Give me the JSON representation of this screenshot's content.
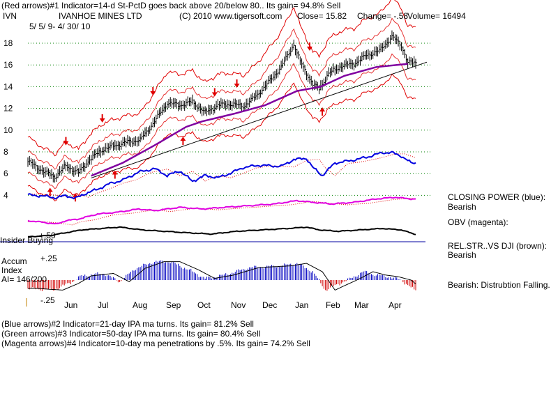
{
  "header": {
    "line1": "(Red arrows)#1 Indicator=14-d St-PctD goes back above 20/below 80.. Its gain= 94.8% Sell",
    "ticker": "IVN",
    "company": "IVANHOE MINES LTD",
    "copyright": "(C) 2010 www.tigersoft.com",
    "close": "Close=  15.82",
    "change": "Change= -.58",
    "volume": "Volume= 16494",
    "date_range": "5/ 5/ 9- 4/ 30/ 10"
  },
  "footer": {
    "line1": "(Blue arrows)#2 Indicator=21-day IPA ma turns. Its gain= 81.2% Sell",
    "line2": "(Green arrows)#3 Indicator=50-day IPA ma turns. Its gain= 80.4% Sell",
    "line3": "(Magenta arrows)#4 Indicator=10-day ma penetrations by .5%. Its gain= 74.2% Sell"
  },
  "side_labels": {
    "closing_power_title": "CLOSING POWER (blue):",
    "closing_power_value": "Bearish",
    "obv_title": "OBV (magenta):",
    "relstr_title": "REL.STR..VS DJI (brown):",
    "relstr_value": "Bearish",
    "accum_value": "Bearish: Distrubtion Falling."
  },
  "panel_labels": {
    "insider": "Insider Buying",
    "plus50": "+.50",
    "plus25": "+.25",
    "minus25": "-.25",
    "accum1": "Accum",
    "accum2": "Index",
    "ai": "AI= 146/200"
  },
  "colors": {
    "price": "#000000",
    "bands": "#e00000",
    "ma50": "#8000a0",
    "closing_power": "#0000e0",
    "obv": "#e000e0",
    "relstr": "#000000",
    "accum_pos": "#0000c0",
    "accum_neg": "#d00000",
    "insider_line": "#0000a0",
    "grid": "#008000"
  },
  "chart_data": {
    "type": "line",
    "title": "IVANHOE MINES LTD (IVN)",
    "x_months": [
      "Jun",
      "Jul",
      "Aug",
      "Sep",
      "Oct",
      "Nov",
      "Dec",
      "Jan",
      "Feb",
      "Mar",
      "Apr"
    ],
    "y_ticks": [
      18,
      16,
      14,
      12,
      10,
      8,
      6,
      4
    ],
    "ylim": [
      3.5,
      19.5
    ],
    "price_keypoints": [
      [
        0,
        7.1
      ],
      [
        10,
        6.2
      ],
      [
        17,
        5.7
      ],
      [
        24,
        6.7
      ],
      [
        32,
        6.1
      ],
      [
        39,
        7.3
      ],
      [
        47,
        8.2
      ],
      [
        55,
        8.6
      ],
      [
        63,
        8.9
      ],
      [
        71,
        9.1
      ],
      [
        79,
        10.6
      ],
      [
        88,
        12.5
      ],
      [
        96,
        12.3
      ],
      [
        104,
        12.6
      ],
      [
        112,
        11.6
      ],
      [
        120,
        12.3
      ],
      [
        128,
        12.4
      ],
      [
        136,
        12.2
      ],
      [
        144,
        13.1
      ],
      [
        152,
        14.4
      ],
      [
        160,
        15.8
      ],
      [
        168,
        17.9
      ],
      [
        172,
        16.3
      ],
      [
        180,
        14.2
      ],
      [
        184,
        13.8
      ],
      [
        190,
        15.2
      ],
      [
        198,
        15.9
      ],
      [
        206,
        16.1
      ],
      [
        214,
        16.9
      ],
      [
        222,
        17.3
      ],
      [
        230,
        18.6
      ],
      [
        236,
        17.8
      ],
      [
        240,
        16.2
      ]
    ],
    "ma50_keypoints": [
      [
        40,
        5.8
      ],
      [
        60,
        7.0
      ],
      [
        80,
        8.6
      ],
      [
        100,
        10.3
      ],
      [
        110,
        10.8
      ],
      [
        130,
        11.5
      ],
      [
        150,
        12.3
      ],
      [
        170,
        13.6
      ],
      [
        185,
        14.0
      ],
      [
        200,
        15.0
      ],
      [
        220,
        15.8
      ],
      [
        240,
        16.1
      ]
    ],
    "trendline": [
      [
        40,
        5.6
      ],
      [
        245,
        16.0
      ]
    ],
    "closing_power_keypoints": [
      [
        0,
        10
      ],
      [
        10,
        8
      ],
      [
        18,
        5
      ],
      [
        24,
        9
      ],
      [
        30,
        4
      ],
      [
        36,
        12
      ],
      [
        44,
        20
      ],
      [
        52,
        30
      ],
      [
        60,
        36
      ],
      [
        70,
        50
      ],
      [
        80,
        56
      ],
      [
        88,
        44
      ],
      [
        96,
        52
      ],
      [
        104,
        34
      ],
      [
        112,
        44
      ],
      [
        120,
        40
      ],
      [
        128,
        48
      ],
      [
        136,
        58
      ],
      [
        146,
        62
      ],
      [
        160,
        60
      ],
      [
        168,
        72
      ],
      [
        176,
        74
      ],
      [
        180,
        58
      ],
      [
        186,
        44
      ],
      [
        194,
        66
      ],
      [
        204,
        70
      ],
      [
        214,
        76
      ],
      [
        224,
        84
      ],
      [
        230,
        84
      ],
      [
        236,
        78
      ],
      [
        242,
        66
      ]
    ],
    "obv_keypoints": [
      [
        0,
        6
      ],
      [
        10,
        4
      ],
      [
        18,
        2
      ],
      [
        24,
        6
      ],
      [
        32,
        8
      ],
      [
        44,
        14
      ],
      [
        56,
        16
      ],
      [
        70,
        20
      ],
      [
        80,
        18
      ],
      [
        96,
        22
      ],
      [
        110,
        20
      ],
      [
        124,
        22
      ],
      [
        140,
        24
      ],
      [
        156,
        26
      ],
      [
        170,
        30
      ],
      [
        180,
        28
      ],
      [
        192,
        26
      ],
      [
        206,
        28
      ],
      [
        220,
        32
      ],
      [
        232,
        34
      ],
      [
        242,
        32
      ]
    ],
    "relstr_keypoints": [
      [
        0,
        12
      ],
      [
        14,
        14
      ],
      [
        24,
        18
      ],
      [
        34,
        22
      ],
      [
        46,
        24
      ],
      [
        58,
        26
      ],
      [
        72,
        22
      ],
      [
        86,
        20
      ],
      [
        100,
        18
      ],
      [
        116,
        16
      ],
      [
        132,
        20
      ],
      [
        148,
        22
      ],
      [
        164,
        24
      ],
      [
        176,
        26
      ],
      [
        184,
        22
      ],
      [
        196,
        20
      ],
      [
        210,
        22
      ],
      [
        224,
        24
      ],
      [
        236,
        22
      ],
      [
        244,
        16
      ]
    ],
    "accum_keypoints": [
      [
        0,
        -0.1
      ],
      [
        16,
        -0.12
      ],
      [
        26,
        -0.04
      ],
      [
        34,
        0.05
      ],
      [
        48,
        0.08
      ],
      [
        58,
        -0.02
      ],
      [
        68,
        0.14
      ],
      [
        80,
        0.22
      ],
      [
        90,
        0.22
      ],
      [
        102,
        0.12
      ],
      [
        112,
        0.02
      ],
      [
        124,
        0.06
      ],
      [
        140,
        0.15
      ],
      [
        160,
        0.17
      ],
      [
        170,
        0.2
      ],
      [
        180,
        0.1
      ],
      [
        188,
        -0.12
      ],
      [
        196,
        -0.05
      ],
      [
        204,
        0.02
      ],
      [
        212,
        0.1
      ],
      [
        220,
        0.06
      ],
      [
        228,
        0.04
      ],
      [
        236,
        0.0
      ],
      [
        244,
        -0.12
      ]
    ],
    "red_arrows_down": [
      [
        24,
        8.6
      ],
      [
        47,
        10.7
      ],
      [
        79,
        13.2
      ],
      [
        118,
        13.1
      ],
      [
        132,
        13.9
      ],
      [
        178,
        17.3
      ]
    ],
    "red_arrows_up": [
      [
        14,
        4.7
      ],
      [
        30,
        4.2
      ],
      [
        55,
        6.3
      ],
      [
        98,
        9.4
      ],
      [
        186,
        12.1
      ]
    ]
  }
}
